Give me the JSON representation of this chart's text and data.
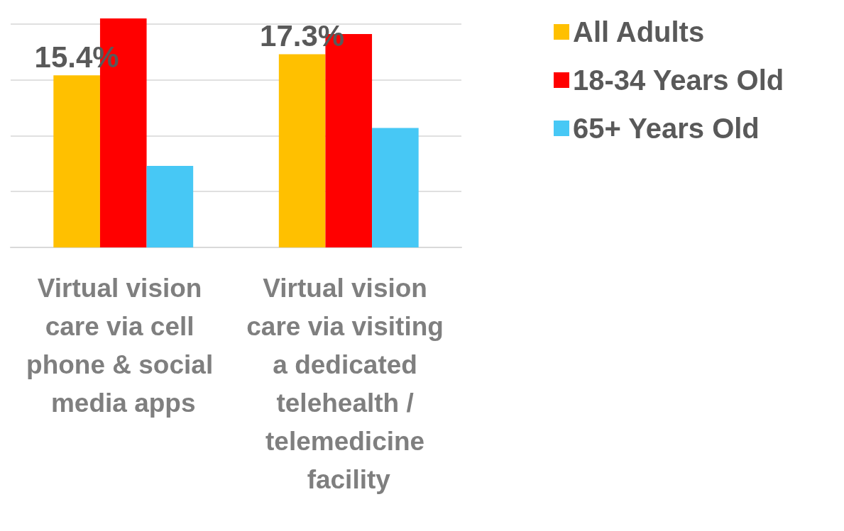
{
  "chart_data": {
    "type": "bar",
    "categories": [
      "Virtual vision care via cell phone & social media apps",
      "Virtual vision care via visiting a dedicated telehealth / telemedicine facility"
    ],
    "series": [
      {
        "name": "All Adults",
        "color": "#ffc000",
        "values": [
          15.4,
          17.3
        ],
        "value_labels": [
          "15.4%",
          "17.3%"
        ]
      },
      {
        "name": "18-34 Years Old",
        "color": "#ff0000",
        "values": [
          20.5,
          19.1
        ]
      },
      {
        "name": "65+ Years Old",
        "color": "#47c8f5",
        "values": [
          7.3,
          10.7
        ]
      }
    ],
    "yticks": [
      {
        "value": 0,
        "label": null
      },
      {
        "value": 5,
        "label": null
      },
      {
        "value": 10,
        "label": null
      },
      {
        "value": 15,
        "label": null
      },
      {
        "value": 20,
        "label": null
      }
    ],
    "grid": "y",
    "legend": "top right",
    "tick_labels": "x"
  }
}
